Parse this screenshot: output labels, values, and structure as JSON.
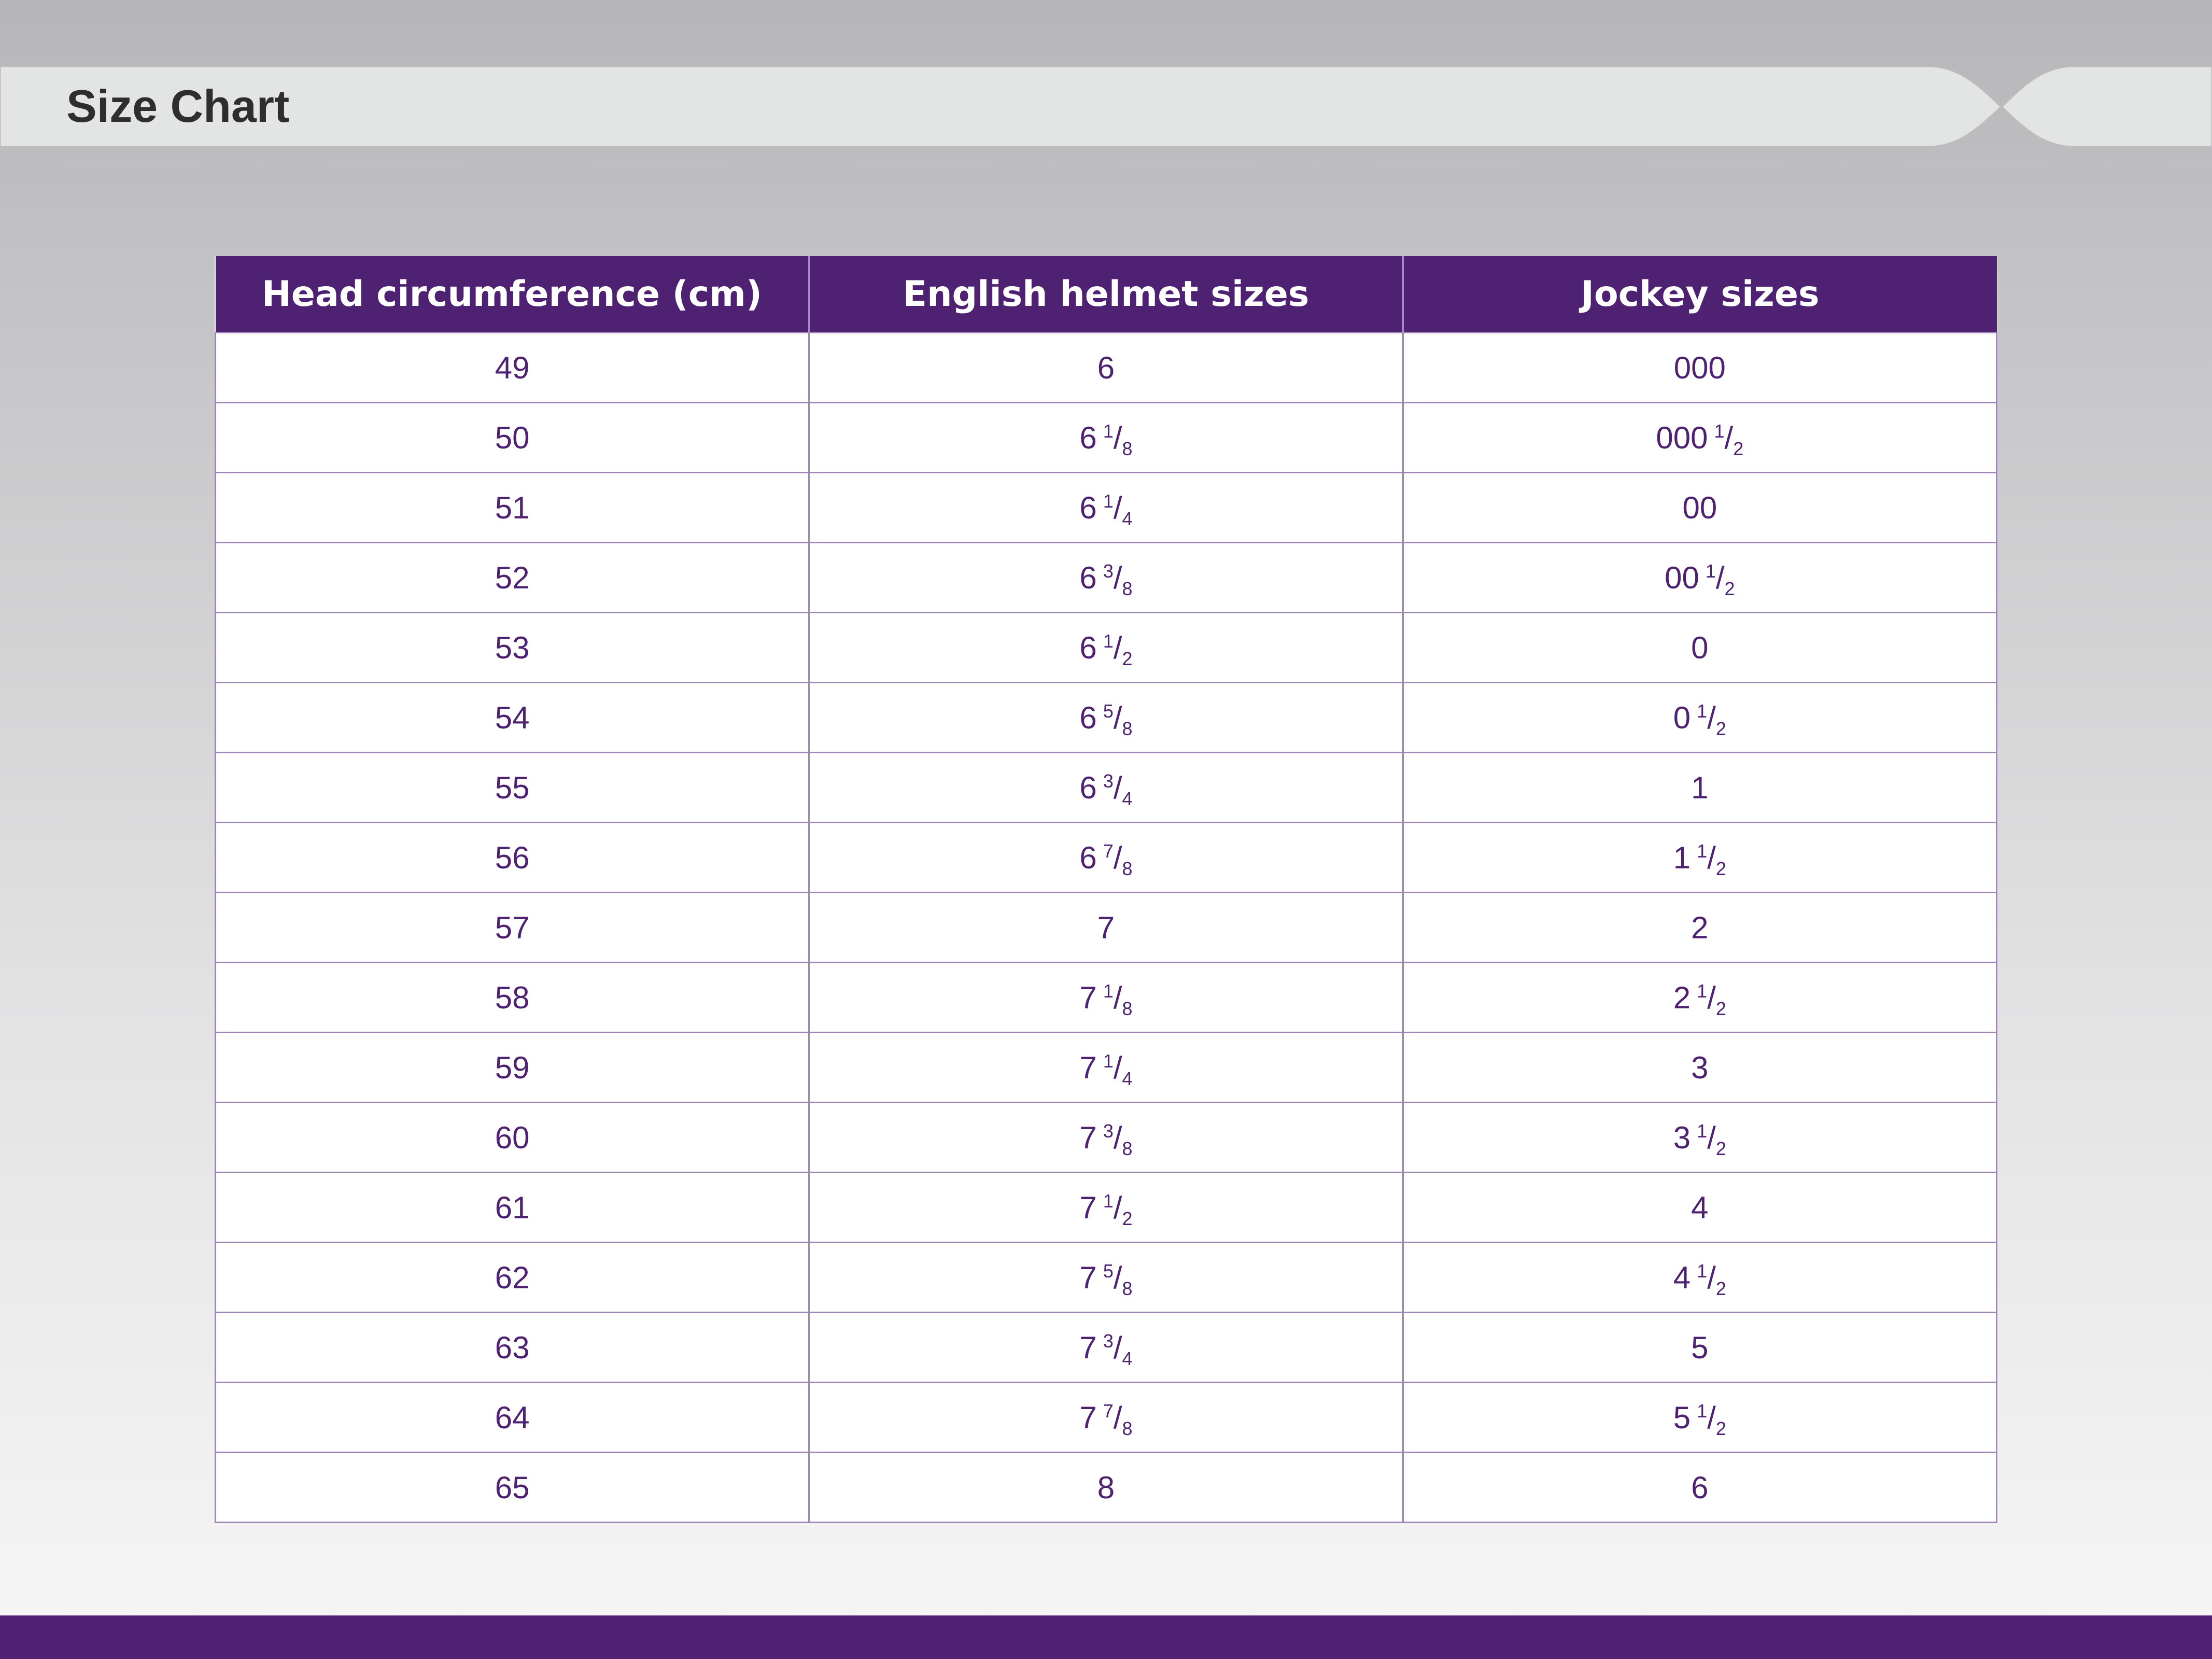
{
  "page": {
    "title": "Size Chart"
  },
  "colors": {
    "brand_purple": "#4e2173",
    "title_text": "#2e2e2e",
    "banner_fill": "#e3e4e4"
  },
  "table": {
    "headers": [
      "Head circumference (cm)",
      "English helmet sizes",
      "Jockey sizes"
    ],
    "rows": [
      {
        "cm": "49",
        "english": {
          "whole": "6",
          "num": "",
          "den": ""
        },
        "jockey": {
          "whole": "000",
          "num": "",
          "den": ""
        }
      },
      {
        "cm": "50",
        "english": {
          "whole": "6",
          "num": "1",
          "den": "8"
        },
        "jockey": {
          "whole": "000",
          "num": "1",
          "den": "2"
        }
      },
      {
        "cm": "51",
        "english": {
          "whole": "6",
          "num": "1",
          "den": "4"
        },
        "jockey": {
          "whole": "00",
          "num": "",
          "den": ""
        }
      },
      {
        "cm": "52",
        "english": {
          "whole": "6",
          "num": "3",
          "den": "8"
        },
        "jockey": {
          "whole": "00",
          "num": "1",
          "den": "2"
        }
      },
      {
        "cm": "53",
        "english": {
          "whole": "6",
          "num": "1",
          "den": "2"
        },
        "jockey": {
          "whole": "0",
          "num": "",
          "den": ""
        }
      },
      {
        "cm": "54",
        "english": {
          "whole": "6",
          "num": "5",
          "den": "8"
        },
        "jockey": {
          "whole": "0",
          "num": "1",
          "den": "2"
        }
      },
      {
        "cm": "55",
        "english": {
          "whole": "6",
          "num": "3",
          "den": "4"
        },
        "jockey": {
          "whole": "1",
          "num": "",
          "den": ""
        }
      },
      {
        "cm": "56",
        "english": {
          "whole": "6",
          "num": "7",
          "den": "8"
        },
        "jockey": {
          "whole": "1",
          "num": "1",
          "den": "2"
        }
      },
      {
        "cm": "57",
        "english": {
          "whole": "7",
          "num": "",
          "den": ""
        },
        "jockey": {
          "whole": "2",
          "num": "",
          "den": ""
        }
      },
      {
        "cm": "58",
        "english": {
          "whole": "7",
          "num": "1",
          "den": "8"
        },
        "jockey": {
          "whole": "2",
          "num": "1",
          "den": "2"
        }
      },
      {
        "cm": "59",
        "english": {
          "whole": "7",
          "num": "1",
          "den": "4"
        },
        "jockey": {
          "whole": "3",
          "num": "",
          "den": ""
        }
      },
      {
        "cm": "60",
        "english": {
          "whole": "7",
          "num": "3",
          "den": "8"
        },
        "jockey": {
          "whole": "3",
          "num": "1",
          "den": "2"
        }
      },
      {
        "cm": "61",
        "english": {
          "whole": "7",
          "num": "1",
          "den": "2"
        },
        "jockey": {
          "whole": "4",
          "num": "",
          "den": ""
        }
      },
      {
        "cm": "62",
        "english": {
          "whole": "7",
          "num": "5",
          "den": "8"
        },
        "jockey": {
          "whole": "4",
          "num": "1",
          "den": "2"
        }
      },
      {
        "cm": "63",
        "english": {
          "whole": "7",
          "num": "3",
          "den": "4"
        },
        "jockey": {
          "whole": "5",
          "num": "",
          "den": ""
        }
      },
      {
        "cm": "64",
        "english": {
          "whole": "7",
          "num": "7",
          "den": "8"
        },
        "jockey": {
          "whole": "5",
          "num": "1",
          "den": "2"
        }
      },
      {
        "cm": "65",
        "english": {
          "whole": "8",
          "num": "",
          "den": ""
        },
        "jockey": {
          "whole": "6",
          "num": "",
          "den": ""
        }
      }
    ]
  }
}
